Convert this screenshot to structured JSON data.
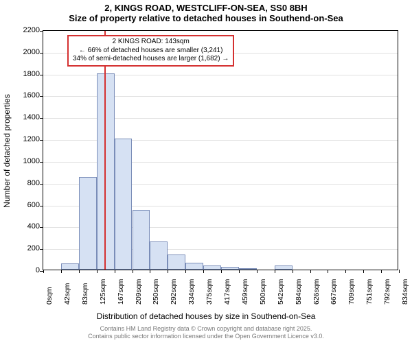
{
  "title": {
    "line1": "2, KINGS ROAD, WESTCLIFF-ON-SEA, SS0 8BH",
    "line2": "Size of property relative to detached houses in Southend-on-Sea"
  },
  "chart": {
    "type": "histogram",
    "background_color": "#ffffff",
    "grid_color": "#e0e0e0",
    "border_color": "#000000",
    "bar_fill": "#d6e1f3",
    "bar_stroke": "#7a8db8",
    "marker_color": "#d43030",
    "annotation_border": "#d43030",
    "x_categories": [
      "0sqm",
      "42sqm",
      "83sqm",
      "125sqm",
      "167sqm",
      "209sqm",
      "250sqm",
      "292sqm",
      "334sqm",
      "375sqm",
      "417sqm",
      "459sqm",
      "500sqm",
      "542sqm",
      "584sqm",
      "626sqm",
      "667sqm",
      "709sqm",
      "751sqm",
      "792sqm",
      "834sqm"
    ],
    "values": [
      0,
      55,
      850,
      1800,
      1200,
      545,
      255,
      140,
      65,
      40,
      25,
      15,
      0,
      35,
      0,
      0,
      0,
      0,
      0,
      0
    ],
    "ylim": [
      0,
      2200
    ],
    "ytick_step": 200,
    "y_ticks": [
      0,
      200,
      400,
      600,
      800,
      1000,
      1200,
      1400,
      1600,
      1800,
      2000,
      2200
    ],
    "ylabel": "Number of detached properties",
    "xlabel": "Distribution of detached houses by size in Southend-on-Sea",
    "label_fontsize": 12,
    "tick_fontsize": 11,
    "title_fontsize": 13,
    "marker_value": 143,
    "x_bin_width": 41.7,
    "annotation": {
      "line1": "2 KINGS ROAD: 143sqm",
      "line2": "← 66% of detached houses are smaller (3,241)",
      "line3": "34% of semi-detached houses are larger (1,682) →"
    }
  },
  "footer": {
    "line1": "Contains HM Land Registry data © Crown copyright and database right 2025.",
    "line2": "Contains public sector information licensed under the Open Government Licence v3.0."
  }
}
